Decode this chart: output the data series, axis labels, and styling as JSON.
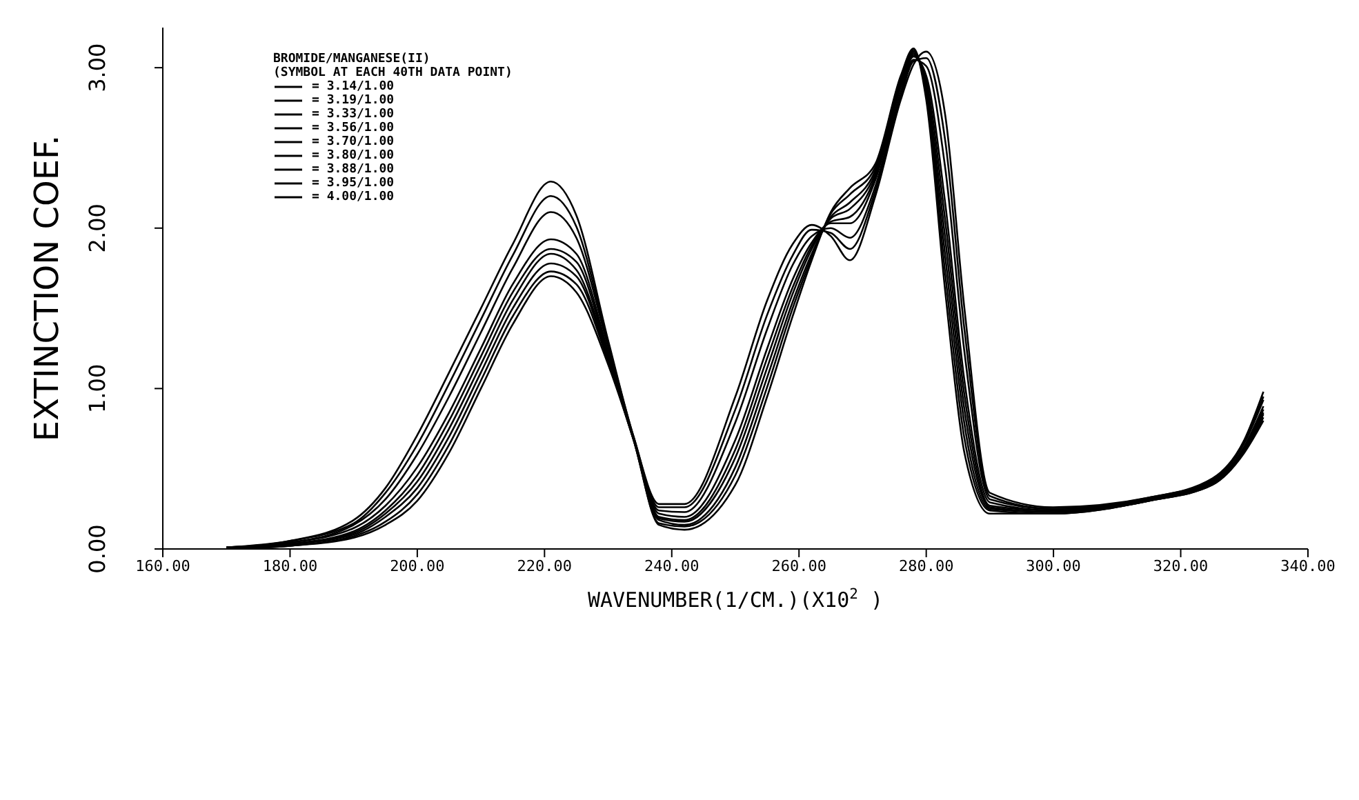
{
  "chart_data": {
    "type": "line",
    "xlabel": "WAVENUMBER(1/CM.)(X10$^{2}$ )",
    "ylabel": "EXTINCTION COEF.",
    "legend_title": "BROMIDE/MANGANESE(II)\n(SYMBOL AT EACH 40TH DATA POINT)",
    "legend": "top left",
    "xlim": [
      160,
      340
    ],
    "xticks": [
      {
        "value": 160,
        "label": "160.00"
      },
      {
        "value": 180,
        "label": "180.00"
      },
      {
        "value": 200,
        "label": "200.00"
      },
      {
        "value": 220,
        "label": "220.00"
      },
      {
        "value": 240,
        "label": "240.00"
      },
      {
        "value": 260,
        "label": "260.00"
      },
      {
        "value": 280,
        "label": "280.00"
      },
      {
        "value": 300,
        "label": "300.00"
      },
      {
        "value": 320,
        "label": "320.00"
      },
      {
        "value": 340,
        "label": "340.00"
      }
    ],
    "ylim": [
      0,
      3.25
    ],
    "yticks": [
      {
        "value": 0,
        "label": "0.00"
      },
      {
        "value": 1,
        "label": "1.00"
      },
      {
        "value": 2,
        "label": "2.00"
      },
      {
        "value": 3,
        "label": "3.00"
      }
    ],
    "x": [
      170,
      180,
      190,
      195,
      200,
      205,
      210,
      215,
      221,
      225,
      230,
      234,
      238,
      242,
      250,
      255,
      259,
      262,
      265,
      268,
      272,
      276,
      278,
      280,
      283,
      286,
      290,
      300,
      315,
      325,
      330,
      333
    ],
    "series": [
      {
        "name": "= 3.14/1.00",
        "color": "#000000",
        "values": [
          0.01,
          0.05,
          0.18,
          0.38,
          0.71,
          1.1,
          1.5,
          1.9,
          2.29,
          2.08,
          1.3,
          0.7,
          0.28,
          0.28,
          0.95,
          1.55,
          1.9,
          2.02,
          1.95,
          1.8,
          2.2,
          2.8,
          3.02,
          3.1,
          2.7,
          1.5,
          0.35,
          0.26,
          0.32,
          0.44,
          0.68,
          0.98
        ]
      },
      {
        "name": "= 3.19/1.00",
        "color": "#000000",
        "values": [
          0.01,
          0.05,
          0.16,
          0.35,
          0.65,
          1.03,
          1.43,
          1.83,
          2.2,
          2.01,
          1.28,
          0.7,
          0.26,
          0.26,
          0.87,
          1.46,
          1.83,
          1.99,
          1.97,
          1.87,
          2.23,
          2.82,
          3.04,
          3.06,
          2.54,
          1.37,
          0.33,
          0.25,
          0.32,
          0.43,
          0.67,
          0.95
        ]
      },
      {
        "name": "= 3.33/1.00",
        "color": "#000000",
        "values": [
          0.01,
          0.04,
          0.15,
          0.31,
          0.59,
          0.95,
          1.35,
          1.75,
          2.1,
          1.94,
          1.26,
          0.69,
          0.24,
          0.23,
          0.79,
          1.37,
          1.77,
          1.95,
          2.0,
          1.94,
          2.26,
          2.85,
          3.05,
          3.01,
          2.37,
          1.23,
          0.31,
          0.25,
          0.31,
          0.43,
          0.66,
          0.93
        ]
      },
      {
        "name": "= 3.56/1.00",
        "color": "#000000",
        "values": [
          0.01,
          0.04,
          0.13,
          0.27,
          0.51,
          0.85,
          1.25,
          1.65,
          1.93,
          1.84,
          1.23,
          0.69,
          0.22,
          0.2,
          0.68,
          1.25,
          1.68,
          1.91,
          2.03,
          2.03,
          2.3,
          2.88,
          3.07,
          2.95,
          2.15,
          1.05,
          0.29,
          0.24,
          0.31,
          0.42,
          0.64,
          0.89
        ]
      },
      {
        "name": "= 3.70/1.00",
        "color": "#000000",
        "values": [
          0.0,
          0.03,
          0.11,
          0.24,
          0.46,
          0.8,
          1.2,
          1.6,
          1.87,
          1.79,
          1.21,
          0.69,
          0.2,
          0.18,
          0.62,
          1.19,
          1.63,
          1.89,
          2.04,
          2.07,
          2.32,
          2.89,
          3.08,
          2.92,
          2.04,
          0.96,
          0.27,
          0.24,
          0.31,
          0.42,
          0.63,
          0.87
        ]
      },
      {
        "name": "= 3.80/1.00",
        "color": "#000000",
        "values": [
          0.0,
          0.03,
          0.1,
          0.22,
          0.42,
          0.75,
          1.15,
          1.55,
          1.84,
          1.74,
          1.2,
          0.69,
          0.19,
          0.17,
          0.57,
          1.13,
          1.59,
          1.87,
          2.06,
          2.12,
          2.34,
          2.91,
          3.09,
          2.89,
          1.93,
          0.87,
          0.26,
          0.23,
          0.31,
          0.41,
          0.62,
          0.85
        ]
      },
      {
        "name": "= 3.88/1.00",
        "color": "#000000",
        "values": [
          0.0,
          0.03,
          0.09,
          0.2,
          0.38,
          0.7,
          1.1,
          1.5,
          1.78,
          1.7,
          1.18,
          0.68,
          0.18,
          0.15,
          0.51,
          1.07,
          1.54,
          1.84,
          2.07,
          2.16,
          2.36,
          2.92,
          3.1,
          2.86,
          1.82,
          0.78,
          0.25,
          0.23,
          0.3,
          0.41,
          0.62,
          0.84
        ]
      },
      {
        "name": "= 3.95/1.00",
        "color": "#000000",
        "values": [
          0.0,
          0.02,
          0.08,
          0.17,
          0.34,
          0.65,
          1.05,
          1.45,
          1.73,
          1.65,
          1.17,
          0.68,
          0.16,
          0.14,
          0.46,
          1.01,
          1.5,
          1.82,
          2.09,
          2.21,
          2.38,
          2.94,
          3.11,
          2.83,
          1.71,
          0.69,
          0.24,
          0.22,
          0.3,
          0.4,
          0.61,
          0.82
        ]
      },
      {
        "name": "= 4.00/1.00",
        "color": "#000000",
        "values": [
          0.0,
          0.02,
          0.07,
          0.15,
          0.3,
          0.6,
          1.0,
          1.4,
          1.7,
          1.6,
          1.15,
          0.68,
          0.15,
          0.12,
          0.4,
          0.95,
          1.45,
          1.8,
          2.1,
          2.25,
          2.4,
          2.95,
          3.12,
          2.8,
          1.6,
          0.6,
          0.22,
          0.22,
          0.3,
          0.4,
          0.6,
          0.8
        ]
      }
    ]
  }
}
